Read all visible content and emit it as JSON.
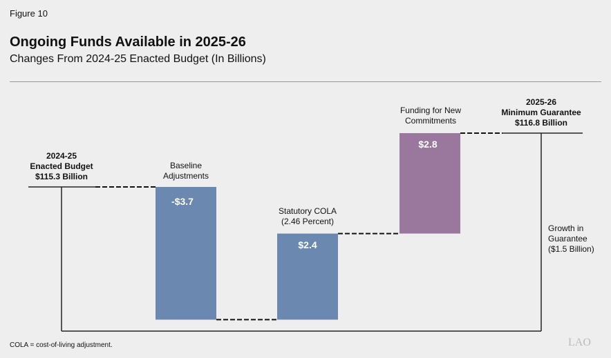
{
  "figure_label": "Figure 10",
  "chart_data": {
    "type": "waterfall",
    "title": "Ongoing Funds Available in 2025-26",
    "subtitle": "Changes From 2024-25 Enacted Budget (In Billions)",
    "start": {
      "label": [
        "2024-25",
        "Enacted Budget",
        "$115.3 Billion"
      ],
      "value": 115.3
    },
    "steps": [
      {
        "label": [
          "Baseline",
          "Adjustments"
        ],
        "value": -3.7,
        "value_label": "-$3.7",
        "color": "#6a88b0"
      },
      {
        "label": [
          "Statutory COLA",
          "(2.46 Percent)"
        ],
        "value": 2.4,
        "value_label": "$2.4",
        "color": "#6a88b0"
      },
      {
        "label": [
          "Funding for New",
          "Commitments"
        ],
        "value": 2.8,
        "value_label": "$2.8",
        "color": "#9a789e"
      }
    ],
    "end": {
      "label": [
        "2025-26",
        "Minimum Guarantee",
        "$116.8 Billion"
      ],
      "value": 116.8
    },
    "growth_label": [
      "Growth in",
      "Guarantee",
      "($1.5 Billion)"
    ]
  },
  "footnote": "COLA = cost-of-living adjustment.",
  "logo": "LAO"
}
